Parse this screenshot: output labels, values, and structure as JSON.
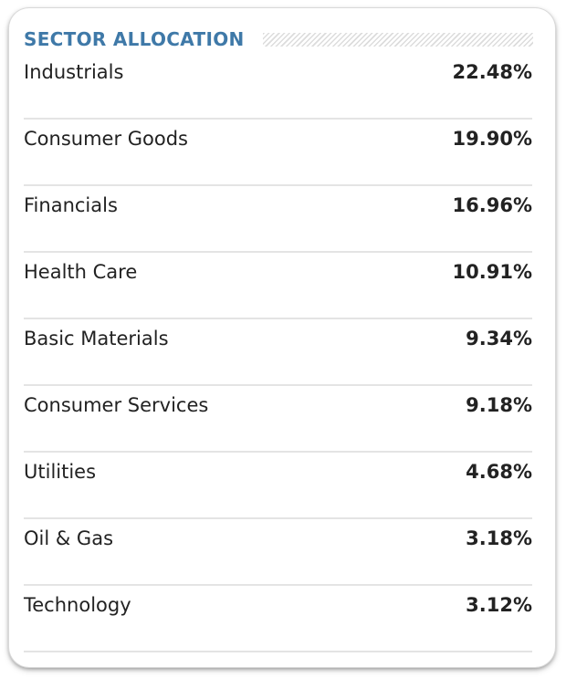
{
  "widget": {
    "title": "SECTOR ALLOCATION"
  },
  "sectors": [
    {
      "label": "Industrials",
      "value": "22.48%"
    },
    {
      "label": "Consumer Goods",
      "value": "19.90%"
    },
    {
      "label": "Financials",
      "value": "16.96%"
    },
    {
      "label": "Health Care",
      "value": "10.91%"
    },
    {
      "label": "Basic Materials",
      "value": "9.34%"
    },
    {
      "label": "Consumer Services",
      "value": "9.18%"
    },
    {
      "label": "Utilities",
      "value": "4.68%"
    },
    {
      "label": "Oil & Gas",
      "value": "3.18%"
    },
    {
      "label": "Technology",
      "value": "3.12%"
    }
  ],
  "colors": {
    "title": "#3f79a8",
    "text": "#222222",
    "divider": "#e4e4e4"
  }
}
